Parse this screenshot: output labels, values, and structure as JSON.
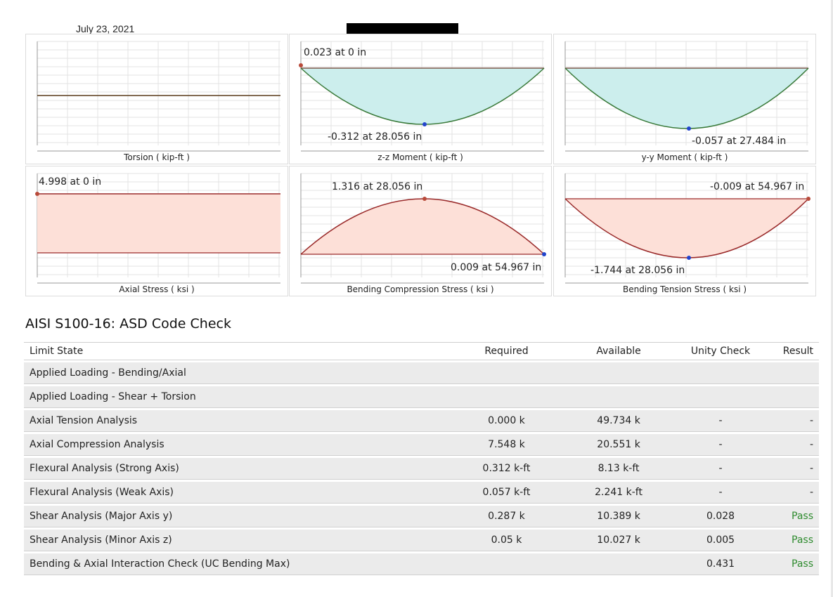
{
  "header": {
    "date": "July 23, 2021"
  },
  "colors": {
    "moment_fill": "#cceeed",
    "moment_line": "#3a7a3a",
    "stress_fill": "#fde0d8",
    "stress_line": "#9a2a2a",
    "max_point": "#b84a3a",
    "min_point": "#2244cc",
    "pass": "#2e8b2e",
    "row_bg": "#ebebeb"
  },
  "charts": {
    "torsion": {
      "title": "Torsion ( kip-ft )"
    },
    "zz_moment": {
      "title": "z-z Moment ( kip-ft )",
      "max_label": "0.023 at 0 in",
      "min_label": "-0.312 at 28.056 in"
    },
    "yy_moment": {
      "title": "y-y Moment ( kip-ft )",
      "min_label": "-0.057 at 27.484 in"
    },
    "axial_stress": {
      "title": "Axial Stress ( ksi )",
      "max_label": "4.998 at 0 in"
    },
    "bending_compression": {
      "title": "Bending Compression Stress ( ksi )",
      "max_label": "1.316 at 28.056 in",
      "min_label": "0.009 at 54.967 in"
    },
    "bending_tension": {
      "title": "Bending Tension Stress ( ksi )",
      "max_label": "-0.009 at 54.967 in",
      "min_label": "-1.744 at 28.056 in"
    }
  },
  "code_check": {
    "title": "AISI S100-16: ASD Code Check",
    "headers": {
      "limit_state": "Limit State",
      "required": "Required",
      "available": "Available",
      "unity": "Unity Check",
      "result": "Result"
    },
    "rows": [
      {
        "limit_state": "Applied Loading - Bending/Axial",
        "required": "",
        "available": "",
        "unity": "",
        "result": ""
      },
      {
        "limit_state": "Applied Loading - Shear + Torsion",
        "required": "",
        "available": "",
        "unity": "",
        "result": ""
      },
      {
        "limit_state": "Axial Tension Analysis",
        "required": "0.000 k",
        "available": "49.734 k",
        "unity": "-",
        "result": "-"
      },
      {
        "limit_state": "Axial Compression Analysis",
        "required": "7.548 k",
        "available": "20.551 k",
        "unity": "-",
        "result": "-"
      },
      {
        "limit_state": "Flexural Analysis (Strong Axis)",
        "required": "0.312 k-ft",
        "available": "8.13 k-ft",
        "unity": "-",
        "result": "-"
      },
      {
        "limit_state": "Flexural Analysis (Weak Axis)",
        "required": "0.057 k-ft",
        "available": "2.241 k-ft",
        "unity": "-",
        "result": "-"
      },
      {
        "limit_state": "Shear Analysis (Major Axis y)",
        "required": "0.287 k",
        "available": "10.389 k",
        "unity": "0.028",
        "result": "Pass"
      },
      {
        "limit_state": "Shear Analysis (Minor Axis z)",
        "required": "0.05 k",
        "available": "10.027 k",
        "unity": "0.005",
        "result": "Pass"
      },
      {
        "limit_state": "Bending & Axial Interaction Check (UC Bending Max)",
        "required": "",
        "available": "",
        "unity": "0.431",
        "result": "Pass"
      }
    ]
  }
}
